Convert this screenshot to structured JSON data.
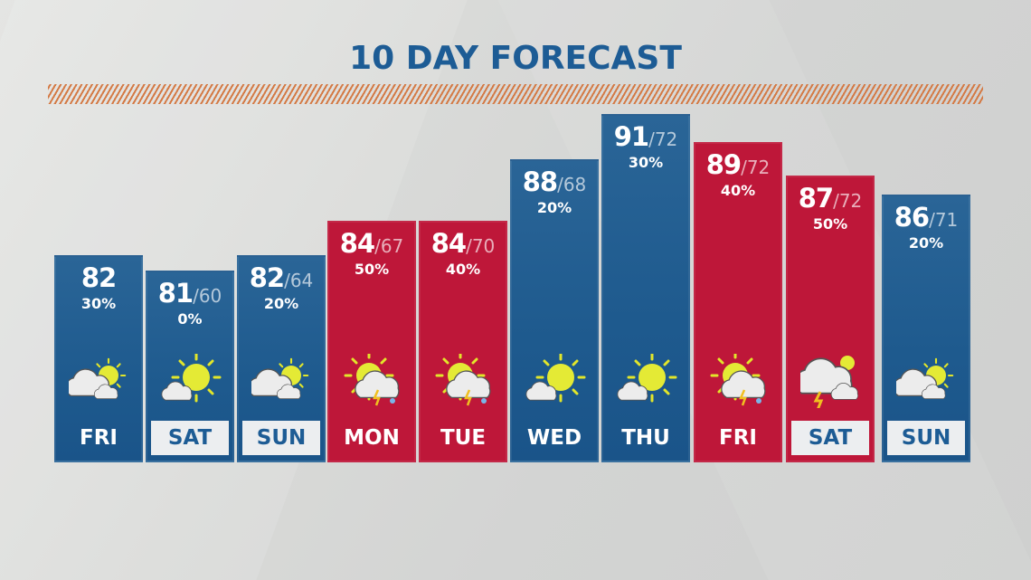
{
  "title": "10 DAY FORECAST",
  "colors": {
    "title": "#1d5c95",
    "hatch": "#d47a45",
    "blue": "#1e5a8e",
    "red": "#be1739",
    "day_box": "#eceef0"
  },
  "days": [
    {
      "day": "FRI",
      "high": "82",
      "low": "",
      "precip": "30%",
      "color": "blue",
      "icon": "partly-cloudy-icon",
      "boxed": false
    },
    {
      "day": "SAT",
      "high": "81",
      "low": "/60",
      "precip": "0%",
      "color": "blue",
      "icon": "mostly-sunny-icon",
      "boxed": true
    },
    {
      "day": "SUN",
      "high": "82",
      "low": "/64",
      "precip": "20%",
      "color": "blue",
      "icon": "partly-cloudy-icon",
      "boxed": true
    },
    {
      "day": "MON",
      "high": "84",
      "low": "/67",
      "precip": "50%",
      "color": "red",
      "icon": "sun-thunderstorm-icon",
      "boxed": false
    },
    {
      "day": "TUE",
      "high": "84",
      "low": "/70",
      "precip": "40%",
      "color": "red",
      "icon": "sun-thunderstorm-icon",
      "boxed": false
    },
    {
      "day": "WED",
      "high": "88",
      "low": "/68",
      "precip": "20%",
      "color": "blue",
      "icon": "mostly-sunny-icon",
      "boxed": false
    },
    {
      "day": "THU",
      "high": "91",
      "low": "/72",
      "precip": "30%",
      "color": "blue",
      "icon": "mostly-sunny-icon",
      "boxed": false
    },
    {
      "day": "FRI",
      "high": "89",
      "low": "/72",
      "precip": "40%",
      "color": "red",
      "icon": "sun-thunderstorm-icon",
      "boxed": false
    },
    {
      "day": "SAT",
      "high": "87",
      "low": "/72",
      "precip": "50%",
      "color": "red",
      "icon": "thunderstorm-icon",
      "boxed": true
    },
    {
      "day": "SUN",
      "high": "86",
      "low": "/71",
      "precip": "20%",
      "color": "blue",
      "icon": "partly-cloudy-icon",
      "boxed": true
    }
  ]
}
